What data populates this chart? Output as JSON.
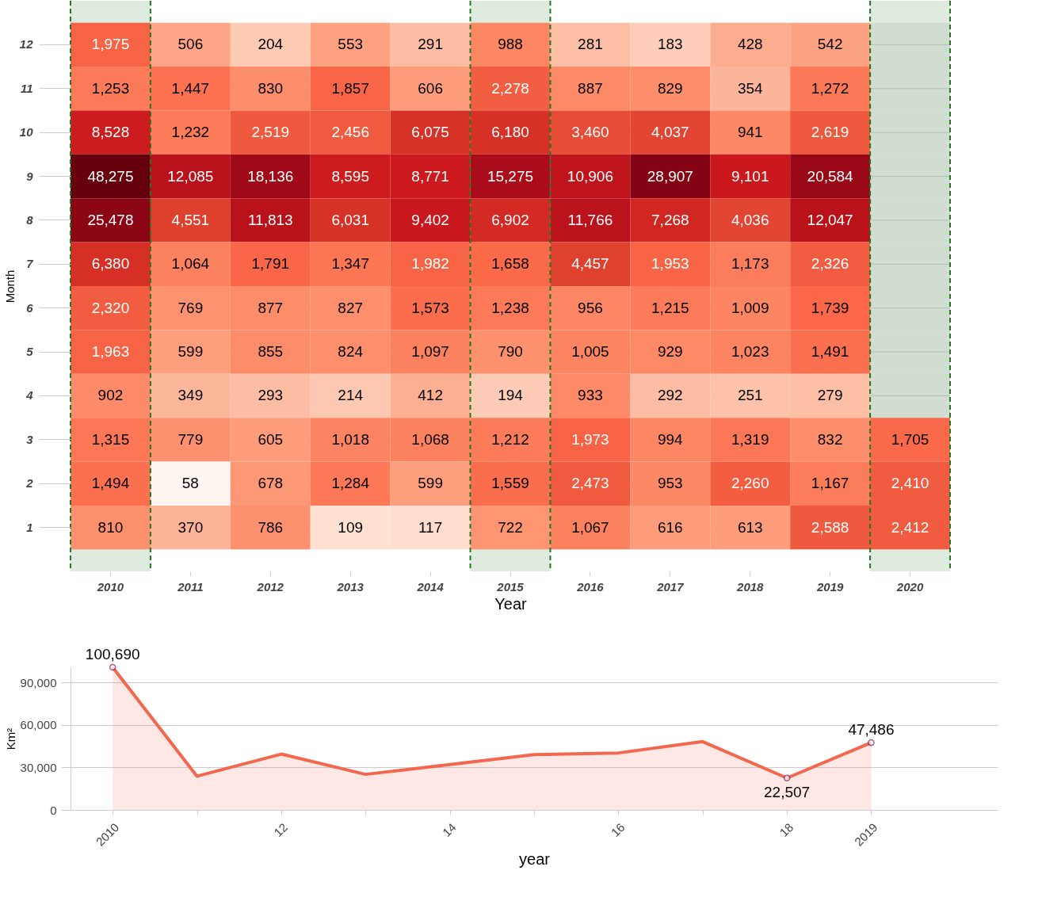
{
  "chart_data": [
    {
      "type": "heatmap",
      "xlabel": "Year",
      "ylabel": "Month",
      "categories": [
        "2010",
        "2011",
        "2012",
        "2013",
        "2014",
        "2015",
        "2016",
        "2017",
        "2018",
        "2019",
        "2020"
      ],
      "y_categories": [
        "12",
        "11",
        "10",
        "9",
        "8",
        "7",
        "6",
        "5",
        "4",
        "3",
        "2",
        "1"
      ],
      "cells": [
        [
          1975,
          506,
          204,
          553,
          291,
          988,
          281,
          183,
          428,
          542,
          null
        ],
        [
          1253,
          1447,
          830,
          1857,
          606,
          2278,
          887,
          829,
          354,
          1272,
          null
        ],
        [
          8528,
          1232,
          2519,
          2456,
          6075,
          6180,
          3460,
          4037,
          941,
          2619,
          null
        ],
        [
          48275,
          12085,
          18136,
          8595,
          8771,
          15275,
          10906,
          28907,
          9101,
          20584,
          null
        ],
        [
          25478,
          4551,
          11813,
          6031,
          9402,
          6902,
          11766,
          7268,
          4036,
          12047,
          null
        ],
        [
          6380,
          1064,
          1791,
          1347,
          1982,
          1658,
          4457,
          1953,
          1173,
          2326,
          null
        ],
        [
          2320,
          769,
          877,
          827,
          1573,
          1238,
          956,
          1215,
          1009,
          1739,
          null
        ],
        [
          1963,
          599,
          855,
          824,
          1097,
          790,
          1005,
          929,
          1023,
          1491,
          null
        ],
        [
          902,
          349,
          293,
          214,
          412,
          194,
          933,
          292,
          251,
          279,
          null
        ],
        [
          1315,
          779,
          605,
          1018,
          1068,
          1212,
          1973,
          994,
          1319,
          832,
          1705
        ],
        [
          1494,
          58,
          678,
          1284,
          599,
          1559,
          2473,
          953,
          2260,
          1167,
          2410
        ],
        [
          810,
          370,
          786,
          109,
          117,
          722,
          1067,
          616,
          613,
          2588,
          2412
        ]
      ],
      "cell_labels": [
        [
          "1,975",
          "506",
          "204",
          "553",
          "291",
          "988",
          "281",
          "183",
          "428",
          "542",
          null
        ],
        [
          "1,253",
          "1,447",
          "830",
          "1,857",
          "606",
          "2,278",
          "887",
          "829",
          "354",
          "1,272",
          null
        ],
        [
          "8,528",
          "1,232",
          "2,519",
          "2,456",
          "6,075",
          "6,180",
          "3,460",
          "4,037",
          "941",
          "2,619",
          null
        ],
        [
          "48,275",
          "12,085",
          "18,136",
          "8,595",
          "8,771",
          "15,275",
          "10,906",
          "28,907",
          "9,101",
          "20,584",
          null
        ],
        [
          "25,478",
          "4,551",
          "11,813",
          "6,031",
          "9,402",
          "6,902",
          "11,766",
          "7,268",
          "4,036",
          "12,047",
          null
        ],
        [
          "6,380",
          "1,064",
          "1,791",
          "1,347",
          "1,982",
          "1,658",
          "4,457",
          "1,953",
          "1,173",
          "2,326",
          null
        ],
        [
          "2,320",
          "769",
          "877",
          "827",
          "1,573",
          "1,238",
          "956",
          "1,215",
          "1,009",
          "1,739",
          null
        ],
        [
          "1,963",
          "599",
          "855",
          "824",
          "1,097",
          "790",
          "1,005",
          "929",
          "1,023",
          "1,491",
          null
        ],
        [
          "902",
          "349",
          "293",
          "214",
          "412",
          "194",
          "933",
          "292",
          "251",
          "279",
          null
        ],
        [
          "1,315",
          "779",
          "605",
          "1,018",
          "1,068",
          "1,212",
          "1,973",
          "994",
          "1,319",
          "832",
          "1,705"
        ],
        [
          "1,494",
          "58",
          "678",
          "1,284",
          "599",
          "1,559",
          "2,473",
          "953",
          "2,260",
          "1,167",
          "2,410"
        ],
        [
          "810",
          "370",
          "786",
          "109",
          "117",
          "722",
          "1,067",
          "616",
          "613",
          "2,588",
          "2,412"
        ]
      ],
      "data_labels": true,
      "grid": "y",
      "bands": [
        {
          "axis": "x",
          "from": "2010",
          "to": "2010",
          "color": "#1f7a1f"
        },
        {
          "axis": "x",
          "from": "2015",
          "to": "2015",
          "color": "#1f7a1f"
        },
        {
          "axis": "x",
          "from": "2020",
          "to": "2020",
          "color": "#1f7a1f"
        }
      ]
    },
    {
      "type": "area",
      "xlabel": "year",
      "ylabel": "Km²",
      "x": [
        2010,
        2011,
        2012,
        2013,
        2014,
        2015,
        2016,
        2017,
        2018,
        2019
      ],
      "series": [
        {
          "color": "#f4674f",
          "values": [
            100690,
            23800,
            39400,
            25100,
            32000,
            39000,
            40200,
            48200,
            22507,
            47486
          ]
        }
      ],
      "xlim": [
        2009.5,
        2020.5
      ],
      "ylim": [
        0,
        100690
      ],
      "xticks": [
        2010,
        {
          "value": 2011,
          "label": null
        },
        {
          "value": 2012,
          "label": "12"
        },
        {
          "value": 2013,
          "label": null
        },
        {
          "value": 2014,
          "label": "14"
        },
        {
          "value": 2015,
          "label": null
        },
        {
          "value": 2016,
          "label": "16"
        },
        {
          "value": 2017,
          "label": null
        },
        {
          "value": 2018,
          "label": "18"
        },
        2019
      ],
      "yticks": [
        0,
        {
          "value": 30000,
          "label": "30,000"
        },
        {
          "value": 60000,
          "label": "60,000"
        },
        {
          "value": 90000,
          "label": "90,000"
        }
      ],
      "grid": "y",
      "annotations": [
        {
          "text": "100,690",
          "x": 2010,
          "y": 100690
        },
        {
          "text": "22,507",
          "x": 2018,
          "y": 22507
        },
        {
          "text": "47,486",
          "x": 2019,
          "y": 47486
        }
      ]
    }
  ]
}
